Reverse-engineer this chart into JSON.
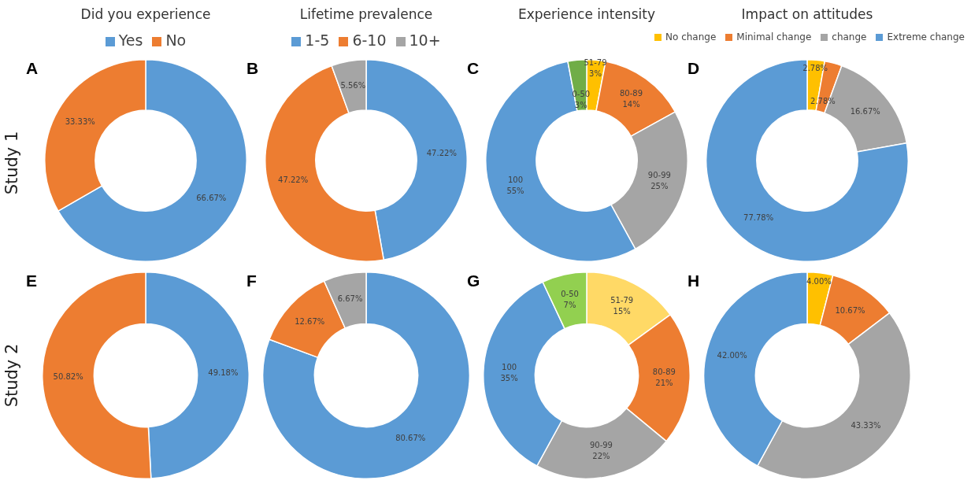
{
  "chart_data": [
    {
      "type": "donut",
      "title": "Did you experience",
      "categories": [
        "Yes",
        "No"
      ],
      "values": [
        66.67,
        33.33
      ],
      "colors": [
        "#5b9bd5",
        "#ed7d31"
      ],
      "value_labels": [
        "66.67%",
        "33.33%"
      ],
      "legend": "top",
      "annotations": [
        "A",
        "Study 1"
      ]
    },
    {
      "type": "donut",
      "title": "Lifetime prevalence",
      "categories": [
        "1-5",
        "6-10",
        "10+"
      ],
      "values": [
        47.22,
        47.22,
        5.56
      ],
      "colors": [
        "#5b9bd5",
        "#ed7d31",
        "#a5a5a5"
      ],
      "value_labels": [
        "47.22%",
        "47.22%",
        "5.56%"
      ],
      "legend": "top",
      "annotations": [
        "B"
      ]
    },
    {
      "type": "donut",
      "title": "Experience intensity",
      "categories": [
        "51-79",
        "80-89",
        "90-99",
        "100",
        "0-50"
      ],
      "values": [
        3,
        14,
        25,
        55,
        3
      ],
      "colors": [
        "#ffc000",
        "#ed7d31",
        "#a5a5a5",
        "#5b9bd5",
        "#70ad47"
      ],
      "value_labels": [
        "3%",
        "14%",
        "25%",
        "55%",
        "3%"
      ],
      "annotations": [
        "C"
      ]
    },
    {
      "type": "donut",
      "title": "Impact on attitudes",
      "categories": [
        "No change",
        "Minimal change",
        "change",
        "Extreme change"
      ],
      "values": [
        2.78,
        2.78,
        16.67,
        77.78
      ],
      "colors": [
        "#ffc000",
        "#ed7d31",
        "#a5a5a5",
        "#5b9bd5"
      ],
      "value_labels": [
        "2.78%",
        "2.78%",
        "16.67%",
        "77.78%"
      ],
      "legend": "top",
      "annotations": [
        "D"
      ]
    },
    {
      "type": "donut",
      "categories": [
        null,
        null
      ],
      "values": [
        49.18,
        50.82
      ],
      "colors": [
        "#5b9bd5",
        "#ed7d31"
      ],
      "value_labels": [
        "49.18%",
        "50.82%"
      ],
      "annotations": [
        "E",
        "Study 2"
      ]
    },
    {
      "type": "donut",
      "categories": [
        null,
        null,
        null
      ],
      "values": [
        80.67,
        12.67,
        6.67
      ],
      "colors": [
        "#5b9bd5",
        "#ed7d31",
        "#a5a5a5"
      ],
      "value_labels": [
        "80.67%",
        "12.67%",
        "6.67%"
      ],
      "annotations": [
        "F"
      ]
    },
    {
      "type": "donut",
      "categories": [
        "51-79",
        "80-89",
        "90-99",
        "100",
        "0-50"
      ],
      "values": [
        15,
        21,
        22,
        35,
        7
      ],
      "colors": [
        "#ffd966",
        "#ed7d31",
        "#a5a5a5",
        "#5b9bd5",
        "#92d050"
      ],
      "value_labels": [
        "15%",
        "21%",
        "22%",
        "35%",
        "7%"
      ],
      "annotations": [
        "G"
      ]
    },
    {
      "type": "donut",
      "categories": [
        null,
        null,
        null,
        null
      ],
      "values": [
        4.0,
        10.67,
        43.33,
        42.0
      ],
      "colors": [
        "#ffc000",
        "#ed7d31",
        "#a5a5a5",
        "#5b9bd5"
      ],
      "value_labels": [
        "4.00%",
        "10.67%",
        "43.33%",
        "42.00%"
      ],
      "annotations": [
        "H"
      ]
    }
  ]
}
